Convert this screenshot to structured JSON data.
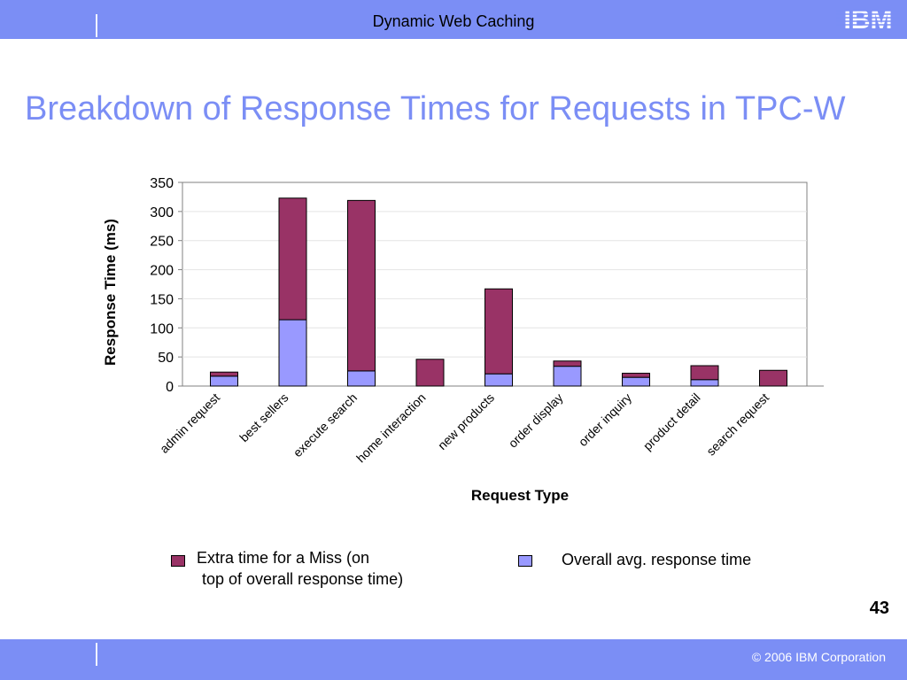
{
  "header": {
    "title": "Dynamic Web Caching",
    "logo_text": "IBM"
  },
  "slide": {
    "title": "Breakdown of Response Times for Requests in TPC-W",
    "page_number": "43"
  },
  "footer": {
    "copyright": "© 2006 IBM Corporation"
  },
  "colors": {
    "bar": "#7b8ef5",
    "title": "#7b8ef5",
    "miss": "#993366",
    "overall": "#9999ff"
  },
  "legend": {
    "miss_line1": "Extra time for a Miss (on",
    "miss_line2": "top of overall response time)",
    "overall": "Overall avg. response time"
  },
  "chart_data": {
    "type": "bar",
    "stacked": true,
    "xlabel": "Request Type",
    "ylabel": "Response Time (ms)",
    "ylim": [
      0,
      350
    ],
    "yticks": [
      0,
      50,
      100,
      150,
      200,
      250,
      300,
      350
    ],
    "grid": true,
    "categories": [
      "admin request",
      "best sellers",
      "execute search",
      "home interaction",
      "new products",
      "order display",
      "order inquiry",
      "product detail",
      "search request"
    ],
    "series": [
      {
        "name": "Overall avg. response time",
        "values": [
          17,
          114,
          26,
          0,
          21,
          34,
          15,
          11,
          0
        ]
      },
      {
        "name": "Extra time for a Miss (on top of overall response time)",
        "values": [
          7,
          209,
          293,
          46,
          146,
          9,
          7,
          24,
          27
        ]
      }
    ]
  }
}
